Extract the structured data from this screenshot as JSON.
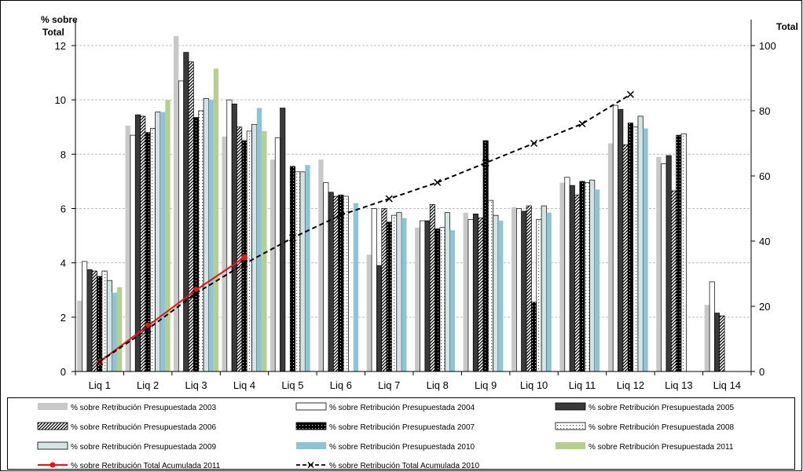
{
  "chart_data": {
    "type": "bar",
    "categories": [
      "Liq 1",
      "Liq 2",
      "Liq 3",
      "Liq 4",
      "Liq 5",
      "Liq 6",
      "Liq 7",
      "Liq 8",
      "Liq 9",
      "Liq 10",
      "Liq 11",
      "Liq 12",
      "Liq 13",
      "Liq 14"
    ],
    "ylabel_left": "% sobre Total",
    "ylabel_right": "Total",
    "ylim_left": [
      0,
      12
    ],
    "yticks_left": [
      0,
      2,
      4,
      6,
      8,
      10,
      12
    ],
    "ylim_right": [
      0,
      100
    ],
    "yticks_right": [
      0,
      20,
      40,
      60,
      80,
      100
    ],
    "grid": true,
    "legend_position": "bottom",
    "series": [
      {
        "name": "% sobre Retribución Presupuestada 2003",
        "kind": "bar",
        "style": "gray",
        "values": [
          2.6,
          9.05,
          12.35,
          8.65,
          7.8,
          7.8,
          4.3,
          5.3,
          5.85,
          6.05,
          6.95,
          8.4,
          7.9,
          2.45
        ]
      },
      {
        "name": "% sobre Retribución Presupuestada 2004",
        "kind": "bar",
        "style": "white",
        "values": [
          4.05,
          8.7,
          10.7,
          10.0,
          8.6,
          6.95,
          6.0,
          5.55,
          5.6,
          6.0,
          7.15,
          9.8,
          7.65,
          3.3
        ]
      },
      {
        "name": "% sobre Retribución Presupuestada 2005",
        "kind": "bar",
        "style": "darkgray",
        "values": [
          3.75,
          9.45,
          11.75,
          9.85,
          9.7,
          6.6,
          3.9,
          5.55,
          5.8,
          5.9,
          6.85,
          9.65,
          7.95,
          2.15
        ]
      },
      {
        "name": "% sobre Retribución Presupuestada 2006",
        "kind": "bar",
        "style": "hatched",
        "values": [
          3.7,
          9.4,
          11.4,
          9.0,
          null,
          6.45,
          6.0,
          6.15,
          5.65,
          6.1,
          6.5,
          8.35,
          6.65,
          2.05
        ]
      },
      {
        "name": "% sobre Retribución Presupuestada 2007",
        "kind": "bar",
        "style": "dotted-black",
        "values": [
          3.5,
          8.8,
          9.35,
          8.5,
          7.55,
          6.5,
          5.5,
          5.25,
          8.5,
          2.55,
          7.0,
          9.15,
          8.7,
          null
        ]
      },
      {
        "name": "% sobre Retribución Presupuestada 2008",
        "kind": "bar",
        "style": "dotted-white",
        "values": [
          3.7,
          8.95,
          9.6,
          8.85,
          7.35,
          6.45,
          5.75,
          5.3,
          6.3,
          5.6,
          6.95,
          9.0,
          8.75,
          null
        ]
      },
      {
        "name": "% sobre Retribución Presupuestada 2009",
        "kind": "bar",
        "style": "lightteal",
        "values": [
          3.35,
          9.55,
          10.05,
          9.1,
          7.35,
          null,
          5.85,
          5.85,
          5.75,
          6.1,
          7.05,
          9.4,
          null,
          null
        ]
      },
      {
        "name": "% sobre Retribución Presupuestada 2010",
        "kind": "bar",
        "style": "lightblue",
        "values": [
          2.9,
          9.55,
          10.0,
          9.7,
          7.6,
          6.2,
          5.65,
          5.2,
          5.55,
          5.85,
          6.7,
          8.95,
          null,
          null
        ]
      },
      {
        "name": "% sobre Retribución Presupuestada 2011",
        "kind": "bar",
        "style": "green",
        "values": [
          3.1,
          10.0,
          11.15,
          8.85,
          null,
          null,
          null,
          null,
          null,
          null,
          null,
          null,
          null,
          null
        ]
      },
      {
        "name": "% sobre Retribución Total Acumulada 2011",
        "kind": "line",
        "axis": "right",
        "style": "red-dot",
        "values": [
          3.0,
          14.0,
          25.0,
          35.0,
          null,
          null,
          null,
          null,
          null,
          null,
          null,
          null,
          null,
          null
        ]
      },
      {
        "name": "% sobre Retribución Total Acumulada 2010",
        "kind": "line",
        "axis": "right",
        "style": "black-dash-x",
        "values": [
          3.0,
          13.0,
          24.0,
          33.0,
          41.0,
          48.0,
          53.0,
          58.0,
          64.0,
          70.0,
          76.0,
          85.0,
          null,
          null
        ]
      }
    ]
  }
}
